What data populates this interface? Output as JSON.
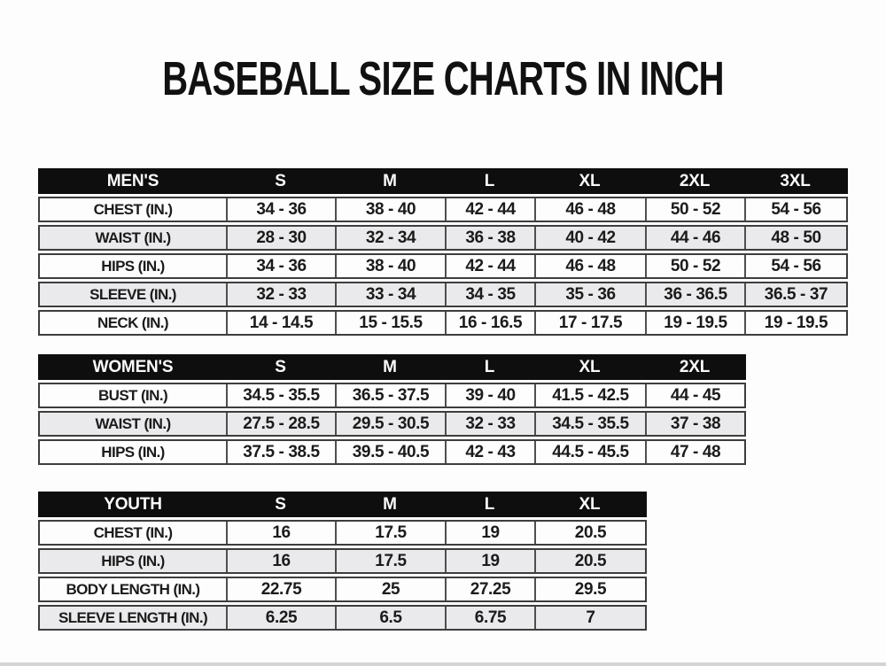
{
  "title": "BASEBALL SIZE CHARTS IN INCH",
  "colors": {
    "header_bg": "#0e0e0e",
    "header_text": "#fafafa",
    "row_bg": "#fdfdfd",
    "row_alt_bg": "#eaeaec",
    "border": "#3d3d3d",
    "text": "#1b1b1b"
  },
  "chart_data": [
    {
      "type": "table",
      "name": "mens",
      "columns": [
        "MEN'S",
        "S",
        "M",
        "L",
        "XL",
        "2XL",
        "3XL"
      ],
      "rows": [
        [
          "CHEST (IN.)",
          "34 - 36",
          "38 - 40",
          "42 - 44",
          "46 - 48",
          "50 - 52",
          "54 - 56"
        ],
        [
          "WAIST (IN.)",
          "28 - 30",
          "32 - 34",
          "36 - 38",
          "40 - 42",
          "44 - 46",
          "48 - 50"
        ],
        [
          "HIPS (IN.)",
          "34 - 36",
          "38 - 40",
          "42 - 44",
          "46 - 48",
          "50 - 52",
          "54 - 56"
        ],
        [
          "SLEEVE (IN.)",
          "32 - 33",
          "33 - 34",
          "34 - 35",
          "35 - 36",
          "36 - 36.5",
          "36.5 - 37"
        ],
        [
          "NECK (IN.)",
          "14 - 14.5",
          "15 - 15.5",
          "16 - 16.5",
          "17 - 17.5",
          "19 - 19.5",
          "19 - 19.5"
        ]
      ]
    },
    {
      "type": "table",
      "name": "womens",
      "columns": [
        "WOMEN'S",
        "S",
        "M",
        "L",
        "XL",
        "2XL"
      ],
      "rows": [
        [
          "BUST (IN.)",
          "34.5 - 35.5",
          "36.5 - 37.5",
          "39 - 40",
          "41.5 - 42.5",
          "44 - 45"
        ],
        [
          "WAIST (IN.)",
          "27.5 - 28.5",
          "29.5 - 30.5",
          "32 - 33",
          "34.5 - 35.5",
          "37 - 38"
        ],
        [
          "HIPS (IN.)",
          "37.5 - 38.5",
          "39.5 - 40.5",
          "42 - 43",
          "44.5 - 45.5",
          "47 - 48"
        ]
      ]
    },
    {
      "type": "table",
      "name": "youth",
      "columns": [
        "YOUTH",
        "S",
        "M",
        "L",
        "XL"
      ],
      "rows": [
        [
          "CHEST (IN.)",
          "16",
          "17.5",
          "19",
          "20.5"
        ],
        [
          "HIPS (IN.)",
          "16",
          "17.5",
          "19",
          "20.5"
        ],
        [
          "BODY LENGTH (IN.)",
          "22.75",
          "25",
          "27.25",
          "29.5"
        ],
        [
          "SLEEVE LENGTH (IN.)",
          "6.25",
          "6.5",
          "6.75",
          "7"
        ]
      ]
    }
  ]
}
